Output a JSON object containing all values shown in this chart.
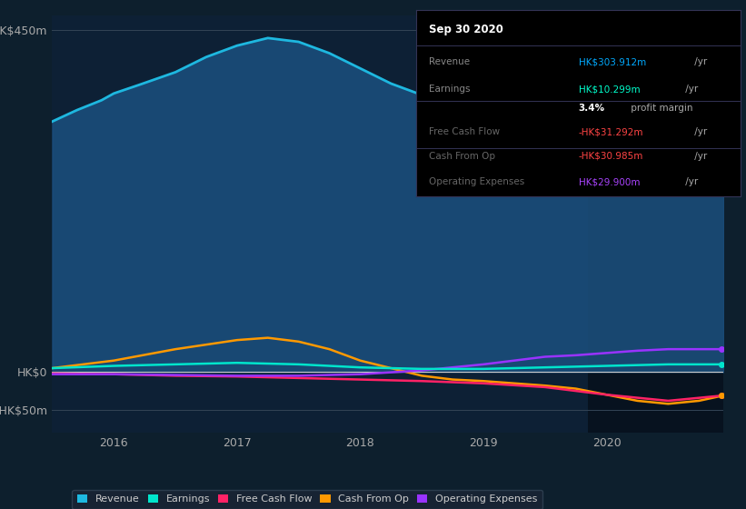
{
  "bg_color": "#0d1f2d",
  "plot_bg_color": "#0d2035",
  "title_box_date": "Sep 30 2020",
  "yticks": [
    450,
    0,
    -50
  ],
  "ytick_labels": [
    "HK$450m",
    "HK$0",
    "-HK$50m"
  ],
  "xticks": [
    2016,
    2017,
    2018,
    2019,
    2020
  ],
  "x_min": 2015.5,
  "x_max": 2020.95,
  "y_min": -80,
  "y_max": 470,
  "highlight_x_start": 2019.85,
  "highlight_x_end": 2020.95,
  "series": {
    "revenue": {
      "color": "#1eb8e0",
      "fill_color": "#1a4d7a",
      "label": "Revenue",
      "x": [
        2015.5,
        2015.7,
        2015.9,
        2016.0,
        2016.2,
        2016.5,
        2016.75,
        2017.0,
        2017.25,
        2017.5,
        2017.75,
        2018.0,
        2018.25,
        2018.5,
        2018.75,
        2019.0,
        2019.25,
        2019.5,
        2019.75,
        2020.0,
        2020.25,
        2020.5,
        2020.75,
        2020.95
      ],
      "y": [
        330,
        345,
        358,
        367,
        378,
        395,
        415,
        430,
        440,
        435,
        420,
        400,
        380,
        365,
        358,
        362,
        375,
        385,
        380,
        360,
        330,
        305,
        295,
        304
      ]
    },
    "earnings": {
      "color": "#00e5cc",
      "label": "Earnings",
      "x": [
        2015.5,
        2016.0,
        2016.5,
        2017.0,
        2017.5,
        2018.0,
        2018.5,
        2019.0,
        2019.5,
        2020.0,
        2020.5,
        2020.95
      ],
      "y": [
        5,
        8,
        10,
        12,
        10,
        6,
        4,
        4,
        6,
        8,
        10,
        10
      ]
    },
    "free_cash_flow": {
      "color": "#ff2266",
      "label": "Free Cash Flow",
      "x": [
        2015.5,
        2016.0,
        2016.5,
        2017.0,
        2017.5,
        2018.0,
        2018.5,
        2019.0,
        2019.5,
        2020.0,
        2020.5,
        2020.95
      ],
      "y": [
        -2,
        -3,
        -5,
        -6,
        -8,
        -10,
        -12,
        -15,
        -20,
        -30,
        -38,
        -31
      ]
    },
    "cash_from_op": {
      "color": "#ff9900",
      "label": "Cash From Op",
      "x": [
        2015.5,
        2016.0,
        2016.5,
        2017.0,
        2017.25,
        2017.5,
        2017.75,
        2018.0,
        2018.25,
        2018.5,
        2018.75,
        2019.0,
        2019.25,
        2019.5,
        2019.75,
        2020.0,
        2020.25,
        2020.5,
        2020.75,
        2020.95
      ],
      "y": [
        5,
        15,
        30,
        42,
        45,
        40,
        30,
        15,
        5,
        -5,
        -10,
        -12,
        -15,
        -18,
        -22,
        -30,
        -38,
        -42,
        -38,
        -31
      ]
    },
    "operating_expenses": {
      "color": "#9933ff",
      "label": "Operating Expenses",
      "x": [
        2015.5,
        2016.0,
        2016.5,
        2017.0,
        2017.5,
        2018.0,
        2018.5,
        2019.0,
        2019.25,
        2019.5,
        2019.75,
        2020.0,
        2020.25,
        2020.5,
        2020.75,
        2020.95
      ],
      "y": [
        -3,
        -3,
        -4,
        -5,
        -5,
        -3,
        2,
        10,
        15,
        20,
        22,
        25,
        28,
        30,
        30,
        30
      ]
    }
  },
  "info_box": {
    "rows": [
      {
        "label": "Revenue",
        "value": "HK$303.912m",
        "suffix": " /yr",
        "value_color": "#00aaff",
        "label_color": "#888888"
      },
      {
        "label": "Earnings",
        "value": "HK$10.299m",
        "suffix": " /yr",
        "value_color": "#00ffcc",
        "label_color": "#888888"
      },
      {
        "label": "",
        "value": "3.4%",
        "suffix": " profit margin",
        "value_color": "#ffffff",
        "label_color": "#888888",
        "bold_value": true
      },
      {
        "label": "Free Cash Flow",
        "value": "-HK$31.292m",
        "suffix": " /yr",
        "value_color": "#ff4444",
        "label_color": "#666666"
      },
      {
        "label": "Cash From Op",
        "value": "-HK$30.985m",
        "suffix": " /yr",
        "value_color": "#ff4444",
        "label_color": "#666666"
      },
      {
        "label": "Operating Expenses",
        "value": "HK$29.900m",
        "suffix": " /yr",
        "value_color": "#aa44ff",
        "label_color": "#666666"
      }
    ]
  },
  "legend": [
    {
      "label": "Revenue",
      "color": "#1eb8e0"
    },
    {
      "label": "Earnings",
      "color": "#00e5cc"
    },
    {
      "label": "Free Cash Flow",
      "color": "#ff2266"
    },
    {
      "label": "Cash From Op",
      "color": "#ff9900"
    },
    {
      "label": "Operating Expenses",
      "color": "#9933ff"
    }
  ]
}
